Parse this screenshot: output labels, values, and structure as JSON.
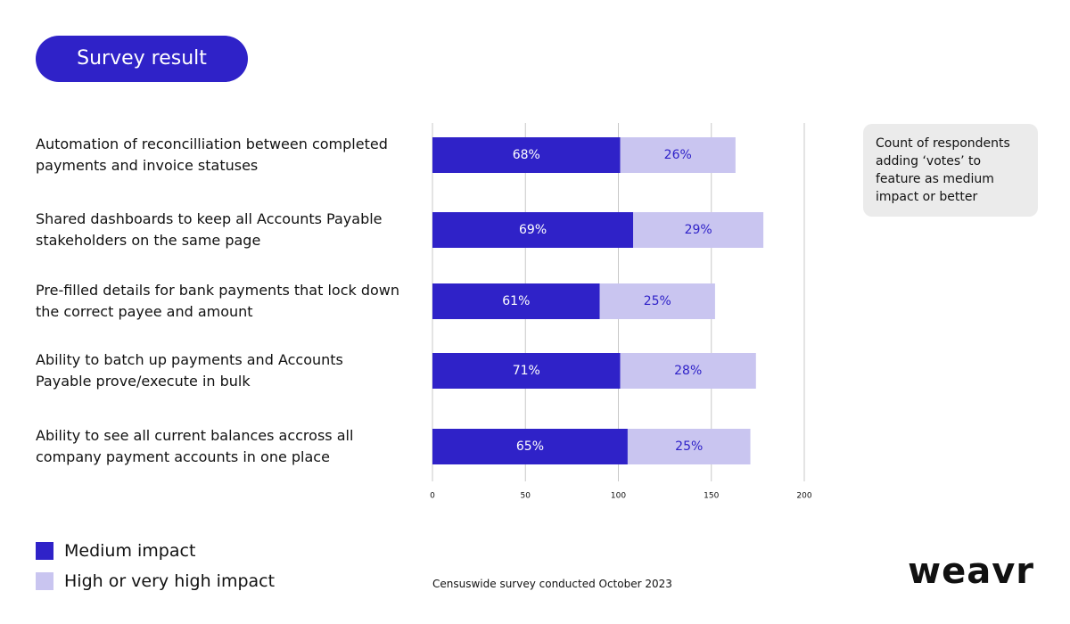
{
  "title": "Survey result",
  "note": "Count of respondents adding ‘votes’ to feature as medium impact or better",
  "source": "Censuswide survey conducted October 2023",
  "logo": "weavr",
  "chart_data": {
    "type": "bar",
    "orientation": "horizontal",
    "stacked": true,
    "categories": [
      "Automation of reconcilliation between completed payments and invoice statuses",
      "Shared dashboards to keep all Accounts Payable stakeholders on the same page",
      "Pre-filled details for bank payments that lock down the correct payee and amount",
      "Ability to batch up payments and Accounts Payable prove/execute in bulk",
      "Ability to see all current balances accross all company payment accounts in one place"
    ],
    "series": [
      {
        "name": "Medium impact",
        "color": "#2f22c8",
        "label_color": "#ffffff",
        "values": [
          101,
          108,
          90,
          101,
          105
        ],
        "percent_labels": [
          "68%",
          "69%",
          "61%",
          "71%",
          "65%"
        ]
      },
      {
        "name": "High or very high impact",
        "color": "#c9c5f0",
        "label_color": "#2f22c8",
        "values": [
          62,
          70,
          62,
          73,
          66
        ],
        "percent_labels": [
          "26%",
          "29%",
          "25%",
          "28%",
          "25%"
        ]
      }
    ],
    "xlim": [
      0,
      200
    ],
    "xticks": [
      0,
      50,
      100,
      150,
      200
    ],
    "grid": true
  }
}
